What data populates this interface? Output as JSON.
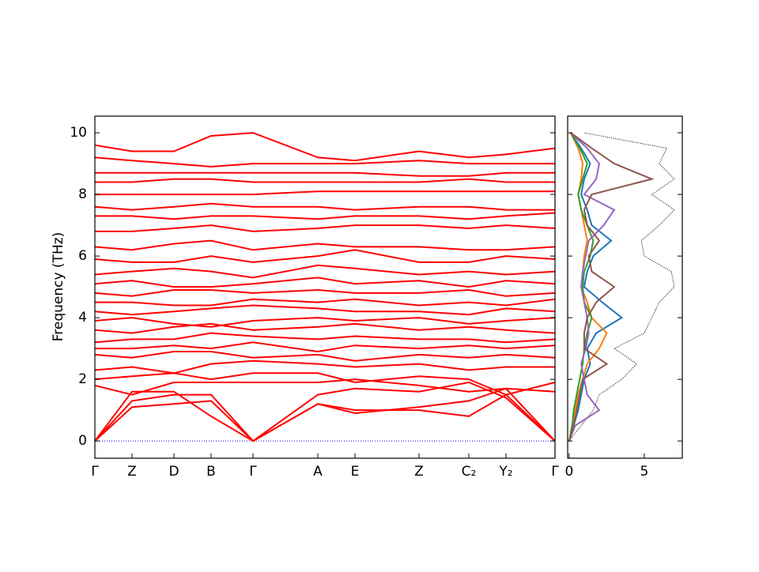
{
  "chart_data": [
    {
      "type": "line",
      "ylabel": "Frequency (THz)",
      "x": [
        0,
        0.47,
        1.0,
        1.47,
        2.0,
        2.82,
        3.29,
        4.1,
        4.73,
        5.2,
        5.82
      ],
      "xlim": [
        0,
        5.82
      ],
      "xticks": [
        {
          "value": 0,
          "label": "Γ"
        },
        {
          "value": 0.47,
          "label": "Z"
        },
        {
          "value": 1.0,
          "label": "D"
        },
        {
          "value": 1.47,
          "label": "B"
        },
        {
          "value": 2.0,
          "label": "Γ"
        },
        {
          "value": 2.82,
          "label": "A"
        },
        {
          "value": 3.29,
          "label": "E"
        },
        {
          "value": 4.1,
          "label": "Z"
        },
        {
          "value": 4.73,
          "label": "C₂"
        },
        {
          "value": 5.2,
          "label": "Y₂"
        },
        {
          "value": 5.82,
          "label": "Γ"
        }
      ],
      "ylim": [
        -0.56,
        10.54
      ],
      "yticks": [
        0,
        2,
        4,
        6,
        8,
        10
      ],
      "zero_line_color": "#0000ff",
      "series": [
        {
          "color": "#ff0000",
          "values": [
            0,
            1.1,
            1.2,
            1.3,
            0,
            1.2,
            1.0,
            1.0,
            0.8,
            1.5,
            0
          ]
        },
        {
          "color": "#ff0000",
          "values": [
            0,
            1.3,
            1.5,
            1.5,
            0,
            1.2,
            0.9,
            1.1,
            1.3,
            1.7,
            0
          ]
        },
        {
          "color": "#ff0000",
          "values": [
            0,
            1.6,
            1.6,
            0.8,
            0,
            1.5,
            1.7,
            1.6,
            1.9,
            1.4,
            0
          ]
        },
        {
          "color": "#ff0000",
          "values": [
            1.8,
            1.5,
            1.9,
            1.9,
            1.9,
            1.9,
            2.0,
            1.8,
            1.6,
            1.7,
            1.6
          ]
        },
        {
          "color": "#ff0000",
          "values": [
            2.0,
            2.1,
            2.2,
            2.0,
            2.2,
            2.2,
            1.9,
            2.1,
            2.0,
            1.5,
            1.9
          ]
        },
        {
          "color": "#ff0000",
          "values": [
            2.3,
            2.4,
            2.2,
            2.5,
            2.6,
            2.5,
            2.4,
            2.5,
            2.3,
            2.4,
            2.4
          ]
        },
        {
          "color": "#ff0000",
          "values": [
            2.8,
            2.7,
            2.9,
            2.9,
            2.7,
            2.8,
            2.6,
            2.8,
            2.7,
            2.8,
            2.7
          ]
        },
        {
          "color": "#ff0000",
          "values": [
            3.0,
            3.0,
            3.1,
            3.0,
            3.2,
            2.9,
            3.1,
            3.0,
            3.1,
            3.0,
            3.1
          ]
        },
        {
          "color": "#ff0000",
          "values": [
            3.2,
            3.3,
            3.3,
            3.5,
            3.4,
            3.3,
            3.4,
            3.3,
            3.3,
            3.2,
            3.3
          ]
        },
        {
          "color": "#ff0000",
          "values": [
            3.6,
            3.5,
            3.7,
            3.8,
            3.6,
            3.7,
            3.8,
            3.6,
            3.7,
            3.6,
            3.5
          ]
        },
        {
          "color": "#ff0000",
          "values": [
            3.9,
            4.0,
            3.8,
            3.7,
            3.9,
            4.0,
            3.9,
            4.0,
            3.8,
            3.9,
            4.0
          ]
        },
        {
          "color": "#ff0000",
          "values": [
            4.2,
            4.1,
            4.2,
            4.3,
            4.4,
            4.3,
            4.2,
            4.2,
            4.1,
            4.3,
            4.2
          ]
        },
        {
          "color": "#ff0000",
          "values": [
            4.5,
            4.5,
            4.4,
            4.4,
            4.6,
            4.5,
            4.6,
            4.4,
            4.5,
            4.4,
            4.6
          ]
        },
        {
          "color": "#ff0000",
          "values": [
            4.8,
            4.7,
            4.9,
            4.9,
            4.8,
            4.9,
            4.8,
            4.8,
            4.9,
            4.7,
            4.8
          ]
        },
        {
          "color": "#ff0000",
          "values": [
            5.1,
            5.2,
            5.0,
            5.0,
            5.1,
            5.3,
            5.1,
            5.2,
            5.0,
            5.2,
            5.1
          ]
        },
        {
          "color": "#ff0000",
          "values": [
            5.4,
            5.5,
            5.6,
            5.5,
            5.3,
            5.7,
            5.6,
            5.4,
            5.5,
            5.4,
            5.5
          ]
        },
        {
          "color": "#ff0000",
          "values": [
            5.9,
            5.8,
            5.8,
            6.0,
            5.8,
            6.0,
            6.2,
            5.8,
            5.8,
            6.0,
            5.9
          ]
        },
        {
          "color": "#ff0000",
          "values": [
            6.3,
            6.2,
            6.4,
            6.5,
            6.2,
            6.4,
            6.3,
            6.3,
            6.2,
            6.2,
            6.3
          ]
        },
        {
          "color": "#ff0000",
          "values": [
            6.8,
            6.8,
            6.9,
            7.0,
            6.8,
            6.9,
            7.0,
            7.0,
            6.9,
            7.0,
            6.9
          ]
        },
        {
          "color": "#ff0000",
          "values": [
            7.3,
            7.3,
            7.2,
            7.3,
            7.3,
            7.2,
            7.3,
            7.3,
            7.2,
            7.3,
            7.4
          ]
        },
        {
          "color": "#ff0000",
          "values": [
            7.6,
            7.5,
            7.6,
            7.7,
            7.6,
            7.6,
            7.5,
            7.6,
            7.6,
            7.5,
            7.5
          ]
        },
        {
          "color": "#ff0000",
          "values": [
            8.0,
            8.0,
            8.0,
            8.0,
            8.0,
            8.1,
            8.1,
            8.1,
            8.1,
            8.1,
            8.1
          ]
        },
        {
          "color": "#ff0000",
          "values": [
            8.4,
            8.4,
            8.5,
            8.5,
            8.4,
            8.4,
            8.4,
            8.4,
            8.5,
            8.4,
            8.4
          ]
        },
        {
          "color": "#ff0000",
          "values": [
            8.7,
            8.7,
            8.7,
            8.7,
            8.7,
            8.7,
            8.7,
            8.6,
            8.6,
            8.7,
            8.7
          ]
        },
        {
          "color": "#ff0000",
          "values": [
            9.2,
            9.1,
            9.0,
            8.9,
            9.0,
            9.0,
            9.0,
            9.1,
            9.0,
            9.0,
            9.0
          ]
        },
        {
          "color": "#ff0000",
          "values": [
            9.6,
            9.4,
            9.4,
            9.9,
            10.0,
            9.2,
            9.1,
            9.4,
            9.2,
            9.3,
            9.5
          ]
        }
      ]
    },
    {
      "type": "dos",
      "y": [
        0,
        0.5,
        1,
        1.5,
        2,
        2.5,
        3,
        3.5,
        4,
        4.5,
        5,
        5.5,
        6,
        6.5,
        7,
        7.5,
        8,
        8.5,
        9,
        9.5,
        10
      ],
      "xlim": [
        -0.1,
        7.53
      ],
      "xticks": [
        0,
        5
      ],
      "ylim": [
        -0.56,
        10.54
      ],
      "series": [
        {
          "color": "#000000",
          "dotted": true,
          "values": [
            0,
            0.8,
            1.6,
            2.0,
            3.5,
            4.5,
            3.0,
            5.0,
            5.5,
            6.0,
            7.0,
            6.8,
            5.0,
            4.8,
            6.0,
            7.0,
            5.5,
            7.0,
            6.0,
            6.5,
            1.0
          ]
        },
        {
          "color": "#1f77b4",
          "values": [
            0,
            0.3,
            0.6,
            0.8,
            1.0,
            1.4,
            1.2,
            1.8,
            3.5,
            2.2,
            1.0,
            1.2,
            1.6,
            2.8,
            1.5,
            1.2,
            0.8,
            1.0,
            1.4,
            0.8,
            0.1
          ]
        },
        {
          "color": "#ff7f0e",
          "values": [
            0,
            0.2,
            0.4,
            0.6,
            0.9,
            1.2,
            2.0,
            2.5,
            1.5,
            1.2,
            0.8,
            0.9,
            1.0,
            1.2,
            1.0,
            0.8,
            0.6,
            0.8,
            0.9,
            0.6,
            0.1
          ]
        },
        {
          "color": "#2ca02c",
          "values": [
            0,
            0.2,
            0.3,
            0.5,
            0.7,
            0.9,
            1.0,
            1.2,
            1.5,
            1.0,
            0.9,
            1.0,
            1.4,
            1.6,
            1.2,
            0.8,
            0.6,
            0.9,
            1.2,
            0.7,
            0.1
          ]
        },
        {
          "color": "#9467bd",
          "values": [
            0,
            0.4,
            2.0,
            1.2,
            1.0,
            0.8,
            1.1,
            1.3,
            1.2,
            1.0,
            0.8,
            0.9,
            1.1,
            1.3,
            2.3,
            3.0,
            1.0,
            1.8,
            2.0,
            1.2,
            0.1
          ]
        },
        {
          "color": "#8c564b",
          "values": [
            0,
            0.3,
            0.5,
            0.7,
            0.9,
            2.5,
            1.0,
            1.0,
            1.2,
            1.8,
            3.0,
            1.5,
            1.3,
            2.0,
            1.2,
            1.0,
            1.5,
            5.5,
            3.0,
            1.5,
            0.1
          ]
        }
      ]
    }
  ]
}
